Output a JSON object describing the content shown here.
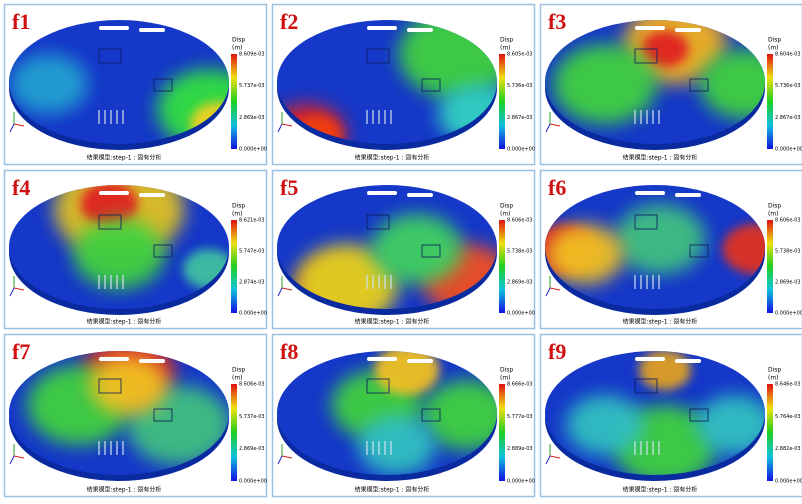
{
  "panels": [
    {
      "label": "f1",
      "legend_title": "Disp",
      "unit": "(m)",
      "ticks": [
        "8.609e-03",
        "5.737e-03",
        "2.869e-03",
        "0.000e+00"
      ],
      "caption": "结果模型:step-1 : 固有分析"
    },
    {
      "label": "f2",
      "legend_title": "Disp",
      "unit": "(m)",
      "ticks": [
        "8.605e-03",
        "5.736e-03",
        "2.867e-03",
        "0.000e+00"
      ],
      "caption": "结果模型:step-1 : 固有分析"
    },
    {
      "label": "f3",
      "legend_title": "Disp",
      "unit": "(m)",
      "ticks": [
        "8.604e-03",
        "5.736e-03",
        "2.867e-03",
        "0.000e+00"
      ],
      "caption": "结果模型:step-1 : 固有分析"
    },
    {
      "label": "f4",
      "legend_title": "Disp",
      "unit": "(m)",
      "ticks": [
        "8.621e-03",
        "5.747e-03",
        "2.874e-03",
        "0.000e+00"
      ],
      "caption": "结果模型:step-1 : 固有分析"
    },
    {
      "label": "f5",
      "legend_title": "Disp",
      "unit": "(m)",
      "ticks": [
        "8.606e-03",
        "5.738e-03",
        "2.869e-03",
        "0.000e+00"
      ],
      "caption": "结果模型:step-1 : 固有分析"
    },
    {
      "label": "f6",
      "legend_title": "Disp",
      "unit": "(m)",
      "ticks": [
        "8.606e-03",
        "5.738e-03",
        "2.869e-03",
        "0.000e+00"
      ],
      "caption": "结果模型:step-1 : 固有分析"
    },
    {
      "label": "f7",
      "legend_title": "Disp",
      "unit": "(m)",
      "ticks": [
        "8.606e-03",
        "5.737e-03",
        "2.869e-03",
        "0.000e+00"
      ],
      "caption": "结果模型:step-1 : 固有分析"
    },
    {
      "label": "f8",
      "legend_title": "Disp",
      "unit": "(m)",
      "ticks": [
        "8.666e-03",
        "5.777e-03",
        "2.889e-03",
        "0.000e+00"
      ],
      "caption": "结果模型:step-1 : 固有分析"
    },
    {
      "label": "f9",
      "legend_title": "Disp",
      "unit": "(m)",
      "ticks": [
        "8.646e-03",
        "5.764e-03",
        "2.882e-03",
        "0.000e+00"
      ],
      "caption": "结果模型:step-1 : 固有分析"
    }
  ]
}
